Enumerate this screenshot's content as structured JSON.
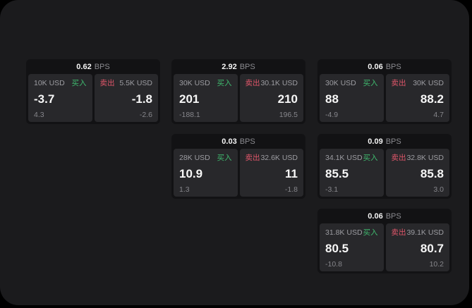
{
  "frame": {
    "background": "#000000",
    "panel_background": "#1b1b1d"
  },
  "labels": {
    "buy": "买入",
    "sell": "卖出",
    "bps_unit": "BPS"
  },
  "colors": {
    "buy_green": "#3fba6f",
    "sell_red": "#e0566a",
    "card_background": "#121214",
    "side_panel_background": "#28282b",
    "value_white": "#f7f7f7",
    "label_gray": "#9d9da2",
    "sub_gray": "#86868b"
  },
  "cards": [
    {
      "bps": "0.62",
      "buy": {
        "notional": "10K USD",
        "price": "-3.7",
        "change": "4.3"
      },
      "sell": {
        "notional": "5.5K USD",
        "price": "-1.8",
        "change": "-2.6"
      }
    },
    {
      "bps": "2.92",
      "buy": {
        "notional": "30K USD",
        "price": "201",
        "change": "-188.1"
      },
      "sell": {
        "notional": "30.1K USD",
        "price": "210",
        "change": "196.5"
      }
    },
    {
      "bps": "0.06",
      "buy": {
        "notional": "30K USD",
        "price": "88",
        "change": "-4.9"
      },
      "sell": {
        "notional": "30K USD",
        "price": "88.2",
        "change": "4.7"
      }
    },
    {
      "bps": "0.03",
      "buy": {
        "notional": "28K USD",
        "price": "10.9",
        "change": "1.3"
      },
      "sell": {
        "notional": "32.6K USD",
        "price": "11",
        "change": "-1.8"
      }
    },
    {
      "bps": "0.09",
      "buy": {
        "notional": "34.1K USD",
        "price": "85.5",
        "change": "-3.1"
      },
      "sell": {
        "notional": "32.8K USD",
        "price": "85.8",
        "change": "3.0"
      }
    },
    {
      "bps": "0.06",
      "buy": {
        "notional": "31.8K USD",
        "price": "80.5",
        "change": "-10.8"
      },
      "sell": {
        "notional": "39.1K USD",
        "price": "80.7",
        "change": "10.2"
      }
    }
  ]
}
